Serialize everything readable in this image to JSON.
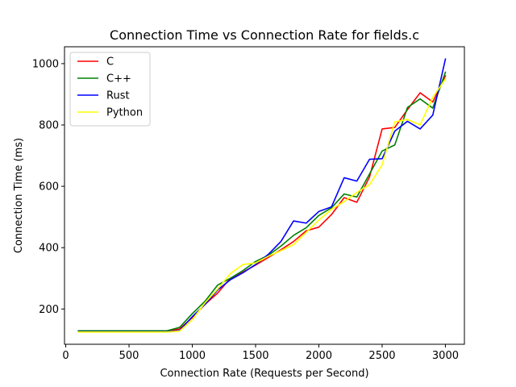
{
  "chart_data": {
    "type": "line",
    "title": "Connection Time vs Connection Rate for fields.c",
    "xlabel": "Connection Rate (Requests per Second)",
    "ylabel": "Connection Time (ms)",
    "xlim": [
      -10,
      3150
    ],
    "ylim": [
      85,
      1055
    ],
    "xticks": [
      0,
      500,
      1000,
      1500,
      2000,
      2500,
      3000
    ],
    "yticks": [
      200,
      400,
      600,
      800,
      1000
    ],
    "grid": false,
    "legend_position": "top-left",
    "x": [
      100,
      200,
      300,
      400,
      500,
      600,
      700,
      800,
      900,
      1000,
      1100,
      1200,
      1300,
      1400,
      1500,
      1600,
      1700,
      1800,
      1900,
      2000,
      2100,
      2200,
      2300,
      2400,
      2500,
      2600,
      2700,
      2800,
      2900,
      3000
    ],
    "series": [
      {
        "name": "C",
        "color": "#ff0000",
        "values": [
          127,
          127,
          127,
          127,
          127,
          127,
          127,
          127,
          135,
          172,
          215,
          252,
          300,
          320,
          343,
          368,
          393,
          420,
          455,
          467,
          508,
          563,
          548,
          630,
          787,
          792,
          850,
          905,
          875,
          960
        ]
      },
      {
        "name": "C++",
        "color": "#008000",
        "values": [
          129,
          129,
          129,
          129,
          129,
          129,
          129,
          129,
          140,
          185,
          225,
          278,
          300,
          325,
          355,
          375,
          405,
          440,
          465,
          505,
          530,
          575,
          565,
          640,
          715,
          735,
          857,
          885,
          855,
          972
        ]
      },
      {
        "name": "Rust",
        "color": "#0000ff",
        "values": [
          126,
          126,
          126,
          126,
          126,
          126,
          126,
          126,
          130,
          175,
          215,
          262,
          295,
          318,
          345,
          378,
          420,
          487,
          480,
          518,
          533,
          628,
          617,
          688,
          690,
          780,
          812,
          787,
          832,
          1015
        ]
      },
      {
        "name": "Python",
        "color": "#ffff00",
        "values": [
          125,
          125,
          125,
          125,
          125,
          125,
          125,
          125,
          128,
          165,
          220,
          265,
          315,
          345,
          350,
          372,
          390,
          410,
          450,
          490,
          525,
          550,
          580,
          605,
          670,
          810,
          818,
          800,
          890,
          950
        ]
      }
    ]
  }
}
